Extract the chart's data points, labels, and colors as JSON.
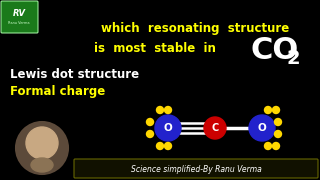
{
  "bg_color": "#000000",
  "title_line1": "which  resonating  structure",
  "title_line2": "is  most  stable  in",
  "lewis_text": "Lewis dot structure",
  "formal_text": "Formal charge",
  "footer_text": "Science simplified-By Ranu Verma",
  "title_color": "#FFFF00",
  "co2_color": "#FFFFFF",
  "lewis_color": "#FFFFFF",
  "formal_color": "#FFFF00",
  "footer_color": "#FFFFFF",
  "o_left_color": "#2222cc",
  "o_right_color": "#2222cc",
  "c_color": "#cc0000",
  "dot_color": "#FFD700",
  "logo_bg": "#1a7a1a",
  "person_color": "#8B7355",
  "footer_border": "#666600"
}
